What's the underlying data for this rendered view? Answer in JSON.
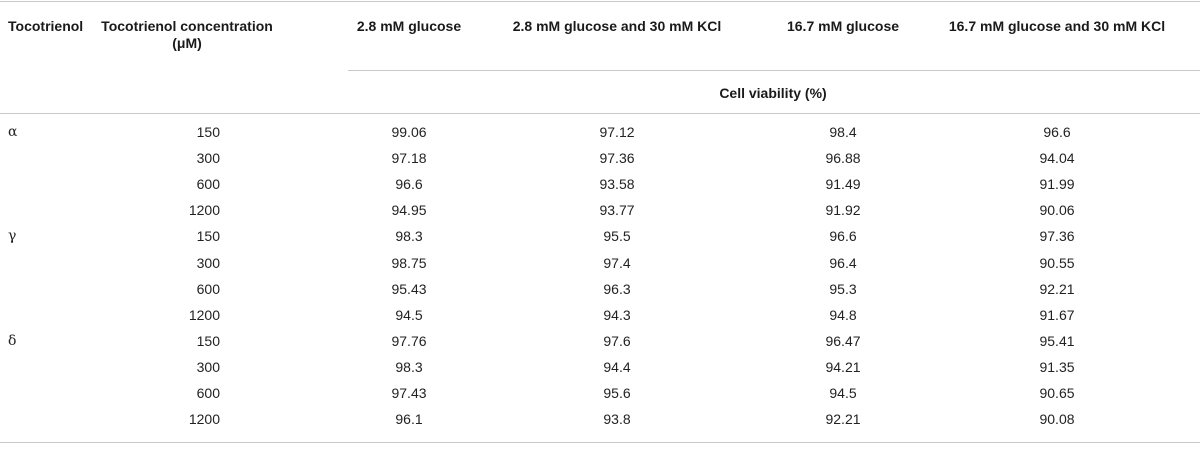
{
  "table": {
    "headers": {
      "tocotrienol": "Tocotrienol",
      "concentration_line1": "Tocotrienol concentration",
      "concentration_line2": "(μM)",
      "col1": "2.8 mM glucose",
      "col2": "2.8 mM glucose and 30 mM KCl",
      "col3": "16.7 mM glucose",
      "col4": "16.7 mM glucose and 30 mM KCl",
      "subheader": "Cell viability (%)"
    },
    "rows": [
      {
        "group": "α",
        "conc": "150",
        "v1": "99.06",
        "v2": "97.12",
        "v3": "98.4",
        "v4": "96.6"
      },
      {
        "group": "",
        "conc": "300",
        "v1": "97.18",
        "v2": "97.36",
        "v3": "96.88",
        "v4": "94.04"
      },
      {
        "group": "",
        "conc": "600",
        "v1": "96.6",
        "v2": "93.58",
        "v3": "91.49",
        "v4": "91.99"
      },
      {
        "group": "",
        "conc": "1200",
        "v1": "94.95",
        "v2": "93.77",
        "v3": "91.92",
        "v4": "90.06"
      },
      {
        "group": "γ",
        "conc": "150",
        "v1": "98.3",
        "v2": "95.5",
        "v3": "96.6",
        "v4": "97.36"
      },
      {
        "group": "",
        "conc": "300",
        "v1": "98.75",
        "v2": "97.4",
        "v3": "96.4",
        "v4": "90.55"
      },
      {
        "group": "",
        "conc": "600",
        "v1": "95.43",
        "v2": "96.3",
        "v3": "95.3",
        "v4": "92.21"
      },
      {
        "group": "",
        "conc": "1200",
        "v1": "94.5",
        "v2": "94.3",
        "v3": "94.8",
        "v4": "91.67"
      },
      {
        "group": "δ",
        "conc": "150",
        "v1": "97.76",
        "v2": "97.6",
        "v3": "96.47",
        "v4": "95.41"
      },
      {
        "group": "",
        "conc": "300",
        "v1": "98.3",
        "v2": "94.4",
        "v3": "94.21",
        "v4": "91.35"
      },
      {
        "group": "",
        "conc": "600",
        "v1": "97.43",
        "v2": "95.6",
        "v3": "94.5",
        "v4": "90.65"
      },
      {
        "group": "",
        "conc": "1200",
        "v1": "96.1",
        "v2": "93.8",
        "v3": "92.21",
        "v4": "90.08"
      }
    ]
  }
}
